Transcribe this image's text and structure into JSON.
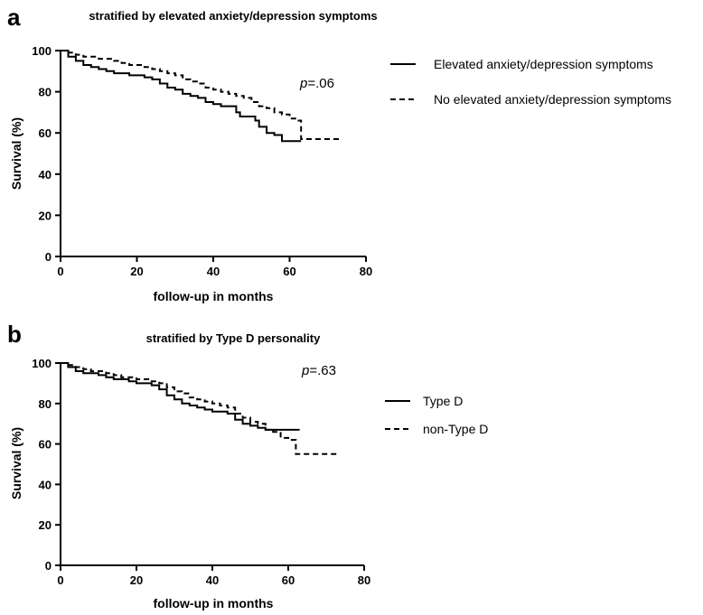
{
  "chart_data": [
    {
      "panel": "a",
      "type": "line",
      "title": "stratified by elevated anxiety/depression symptoms",
      "xlabel": "follow-up in months",
      "ylabel": "Survival (%)",
      "xlim": [
        0,
        80
      ],
      "ylim": [
        0,
        100
      ],
      "xticks": [
        0,
        20,
        40,
        60,
        80
      ],
      "yticks": [
        0,
        20,
        40,
        60,
        80,
        100
      ],
      "grid": false,
      "legend_position": "right",
      "annotation": {
        "italic": "p",
        "rest": "=.06"
      },
      "series": [
        {
          "name": "Elevated anxiety/depression symptoms",
          "style": "solid",
          "x": [
            0,
            2,
            4,
            6,
            8,
            10,
            12,
            14,
            16,
            18,
            20,
            22,
            24,
            26,
            28,
            30,
            32,
            34,
            36,
            38,
            40,
            42,
            44,
            46,
            47,
            49,
            51,
            52,
            54,
            56,
            58,
            60,
            62,
            63
          ],
          "y": [
            100,
            97,
            95,
            93,
            92,
            91,
            90,
            89,
            89,
            88,
            88,
            87,
            86,
            84,
            82,
            81,
            79,
            78,
            77,
            75,
            74,
            73,
            73,
            70,
            68,
            68,
            66,
            63,
            60,
            59,
            56,
            56,
            56,
            56
          ]
        },
        {
          "name": "No elevated anxiety/depression symptoms",
          "style": "dashed",
          "x": [
            0,
            2,
            4,
            6,
            8,
            10,
            12,
            14,
            16,
            18,
            20,
            22,
            24,
            26,
            28,
            30,
            32,
            34,
            36,
            38,
            40,
            42,
            44,
            46,
            48,
            50,
            52,
            54,
            56,
            58,
            60,
            62,
            63,
            66,
            70,
            73
          ],
          "y": [
            100,
            99,
            98,
            97,
            97,
            96,
            96,
            95,
            94,
            93,
            93,
            92,
            91,
            90,
            89,
            88,
            86,
            85,
            84,
            82,
            81,
            80,
            79,
            78,
            77,
            75,
            73,
            72,
            70,
            69,
            67,
            66,
            57,
            57,
            57,
            57
          ]
        }
      ]
    },
    {
      "panel": "b",
      "type": "line",
      "title": "stratified by Type D personality",
      "xlabel": "follow-up in months",
      "ylabel": "Survival (%)",
      "xlim": [
        0,
        80
      ],
      "ylim": [
        0,
        100
      ],
      "xticks": [
        0,
        20,
        40,
        60,
        80
      ],
      "yticks": [
        0,
        20,
        40,
        60,
        80,
        100
      ],
      "grid": false,
      "legend_position": "right",
      "annotation": {
        "italic": "p",
        "rest": "=.63"
      },
      "series": [
        {
          "name": "Type D",
          "style": "solid",
          "x": [
            0,
            2,
            4,
            6,
            8,
            10,
            12,
            14,
            16,
            18,
            20,
            22,
            24,
            26,
            28,
            30,
            32,
            34,
            36,
            38,
            40,
            42,
            44,
            46,
            48,
            50,
            52,
            54,
            56,
            58,
            60,
            62,
            63
          ],
          "y": [
            100,
            98,
            96,
            95,
            95,
            94,
            93,
            92,
            92,
            91,
            90,
            90,
            89,
            87,
            84,
            82,
            80,
            79,
            78,
            77,
            76,
            76,
            75,
            72,
            70,
            69,
            68,
            67,
            67,
            67,
            67,
            67,
            67
          ]
        },
        {
          "name": "non-Type D",
          "style": "dashed",
          "x": [
            0,
            2,
            4,
            6,
            8,
            10,
            12,
            14,
            16,
            18,
            20,
            22,
            24,
            26,
            28,
            30,
            32,
            34,
            36,
            38,
            40,
            42,
            44,
            46,
            48,
            50,
            52,
            54,
            56,
            58,
            60,
            62,
            66,
            70,
            73
          ],
          "y": [
            100,
            99,
            98,
            97,
            96,
            96,
            95,
            94,
            93,
            93,
            92,
            92,
            91,
            90,
            88,
            86,
            85,
            83,
            82,
            81,
            80,
            79,
            78,
            75,
            73,
            71,
            70,
            67,
            66,
            63,
            62,
            55,
            55,
            55,
            55
          ]
        }
      ]
    }
  ]
}
